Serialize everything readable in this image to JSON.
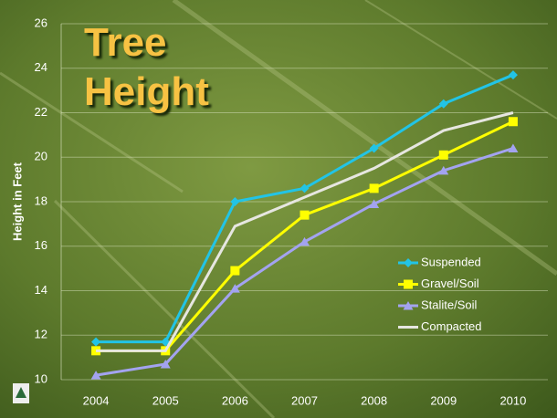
{
  "chart_data": {
    "type": "line",
    "title": "Tree Height",
    "y_label": "Height in Feet",
    "categories": [
      "2004",
      "2005",
      "2006",
      "2007",
      "2008",
      "2009",
      "2010"
    ],
    "series": [
      {
        "name": "Suspended",
        "color": "#22c4e6",
        "marker": "diamond",
        "values": [
          11.7,
          11.7,
          18.0,
          18.6,
          20.4,
          22.4,
          23.7
        ]
      },
      {
        "name": "Gravel/Soil",
        "color": "#ffff00",
        "marker": "square",
        "values": [
          11.3,
          11.3,
          14.9,
          17.4,
          18.6,
          20.1,
          21.6
        ]
      },
      {
        "name": "Stalite/Soil",
        "color": "#a3a3f0",
        "marker": "triangle",
        "values": [
          10.2,
          10.7,
          14.1,
          16.2,
          17.9,
          19.4,
          20.4
        ]
      },
      {
        "name": "Compacted",
        "color": "#e6e6e0",
        "marker": "none",
        "values": [
          11.3,
          11.3,
          16.9,
          18.2,
          19.5,
          21.2,
          22.0
        ]
      }
    ],
    "ylim": [
      10,
      26
    ],
    "yticks": [
      10,
      12,
      14,
      16,
      18,
      20,
      22,
      24,
      26
    ],
    "grid": true,
    "legend": "lower right"
  }
}
